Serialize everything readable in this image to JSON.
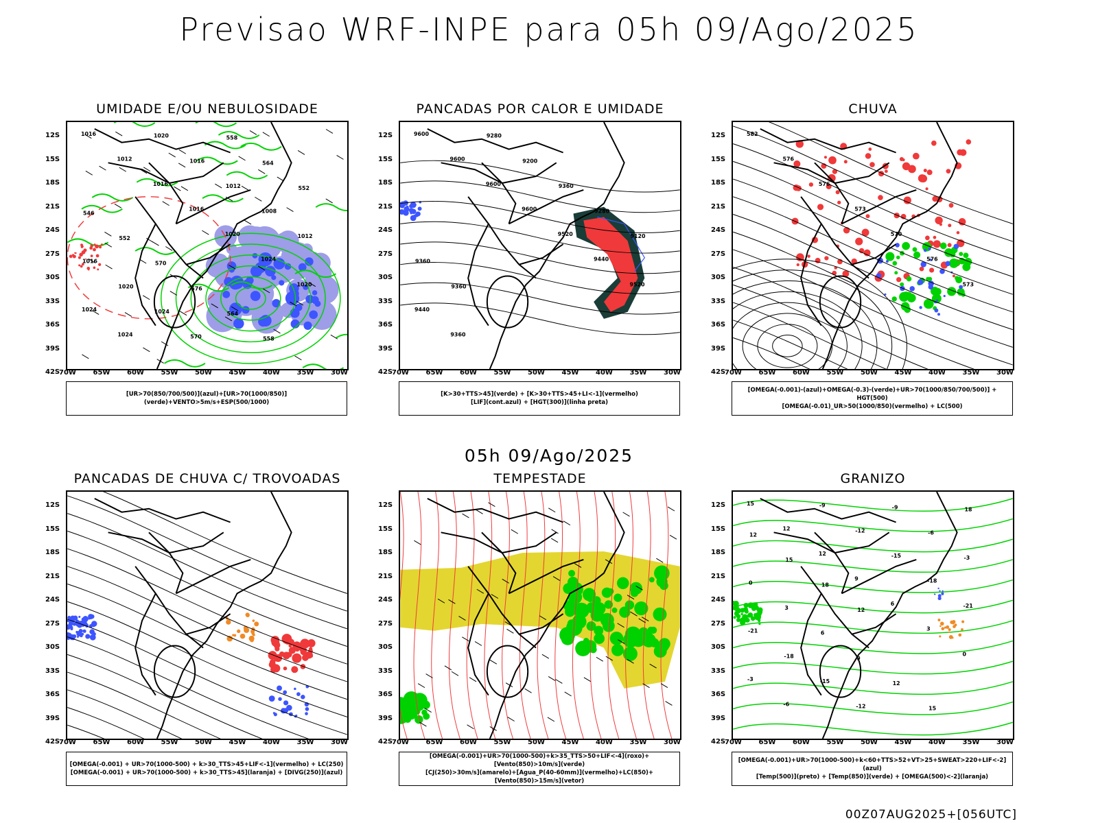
{
  "header": {
    "title": "Previsao WRF-INPE  para 05h 09/Ago/2025"
  },
  "mid_caption": "05h 09/Ago/2025",
  "footer": "00Z07AUG2025+[056UTC]",
  "axes": {
    "lat_labels": [
      "12S",
      "15S",
      "18S",
      "21S",
      "24S",
      "27S",
      "30S",
      "33S",
      "36S",
      "39S",
      "42S"
    ],
    "lon_labels": [
      "70W",
      "65W",
      "60W",
      "55W",
      "50W",
      "45W",
      "40W",
      "35W",
      "30W"
    ]
  },
  "panels": [
    {
      "title": "UMIDADE E/OU NEBULOSIDADE",
      "legend": [
        "[UR>70(850/700/500)](azul)+[UR>70(1000/850)](verde)+VENTO>5m/s+ESP(500/1000)"
      ],
      "contour_labels": [
        "1016",
        "1012",
        "1016",
        "1016",
        "1020",
        "1024",
        "1020",
        "1024",
        "1024",
        "1020",
        "1016",
        "1012",
        "1008",
        "1012",
        "1016",
        "1020",
        "1024",
        "570",
        "558",
        "564",
        "552",
        "546",
        "552",
        "570",
        "576",
        "564",
        "558"
      ]
    },
    {
      "title": "PANCADAS POR CALOR E UMIDADE",
      "legend": [
        "[K>30+TTS>45](verde) + [K>30+TTS>45+LI<-1](vermelho)",
        "[LIF](cont.azul) + [HGT(300)](linha preta)"
      ],
      "contour_labels": [
        "9600",
        "9600",
        "9600",
        "9600",
        "9520",
        "9440",
        "9520",
        "9440",
        "9360",
        "9280",
        "9200",
        "9360",
        "9280",
        "9120",
        "9360",
        "9360"
      ]
    },
    {
      "title": "CHUVA",
      "legend": [
        "[OMEGA(-0.001)-(azul)+OMEGA(-0.3)-(verde)+UR>70(1000/850/700/500)] + HGT(500)",
        "[OMEGA(-0.01)_UR>50(1000/850)(vermelho) + LC(500)"
      ],
      "contour_labels": [
        "582",
        "576",
        "576",
        "573",
        "570",
        "576",
        "573"
      ]
    },
    {
      "title": "PANCADAS DE CHUVA C/ TROVOADAS",
      "legend": [
        "[OMEGA(-0.001) + UR>70(1000-500) + k>30_TTS>45+LIF<-1](vermelho) + LC(250)",
        "[OMEGA(-0.001) + UR>70(1000-500) + k>30_TTS>45](laranja) + [DIVG(250)](azul)"
      ],
      "contour_labels": []
    },
    {
      "title": "TEMPESTADE",
      "legend": [
        "[OMEGA(-0.001)+UR>70(1000-500)+k>35_TTS>50+LIF<-4](roxo)+[Vento(850)>10m/s](verde)",
        "[CJ(250)>30m/s](amarelo)+[Agua_P(40-60mm)](vermelho)+LC(850)+[Vento(850)>15m/s](vetor)"
      ],
      "contour_labels": []
    },
    {
      "title": "GRANIZO",
      "legend": [
        "[OMEGA(-0.001)+UR>70(1000-500)+k<60+TTS>52+VT>25+SWEAT>220+LIF<-2](azul)",
        "[Temp(500)](preto) + [Temp(850)](verde) + [OMEGA(500)<-2](laranja)"
      ],
      "contour_labels": [
        "15",
        "12",
        "12",
        "9",
        "6",
        "3",
        "0",
        "-3",
        "-6",
        "-9",
        "-12",
        "-15",
        "-18",
        "-21",
        "-21",
        "-18",
        "-15",
        "-12",
        "-9",
        "-6",
        "-3",
        "0",
        "3",
        "6",
        "9",
        "12",
        "15",
        "18",
        "12",
        "15",
        "18",
        "12"
      ]
    }
  ],
  "colors": {
    "red": "#f0393a",
    "green": "#00d200",
    "blue": "#3d55ff",
    "yellow": "#e3d630",
    "orange": "#f08a24",
    "darkgreen": "#1a3d38",
    "lightblue": "#9d9de8"
  }
}
